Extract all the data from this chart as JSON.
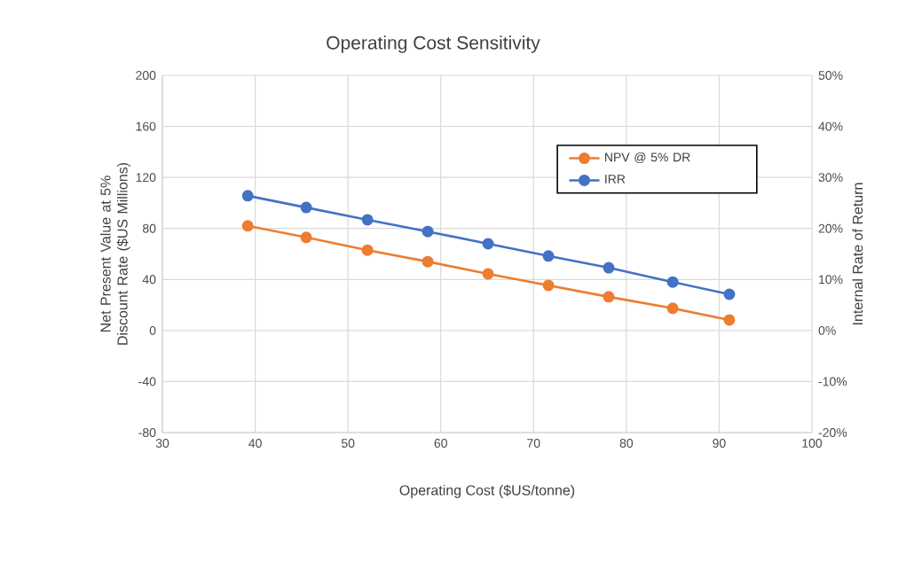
{
  "chart_data": {
    "type": "line",
    "title": "Operating Cost Sensitivity",
    "xlabel": "Operating Cost ($US/tonne)",
    "ylabel": "Net Present Value at 5% Discount Rate ($US Millions)",
    "y2label": "Internal Rate of Return",
    "x": [
      39.2,
      45.5,
      52.1,
      58.6,
      65.1,
      71.6,
      78.1,
      85,
      91.1
    ],
    "series": [
      {
        "name": "NPV @ 5% DR",
        "color": "#ed7d31",
        "values": [
          82,
          73,
          63,
          54,
          44.4,
          35.4,
          26.4,
          17.4,
          8.3
        ]
      },
      {
        "name": "IRR",
        "color": "#4472c4",
        "axis": "y2",
        "values": [
          26.4,
          24.1,
          21.7,
          19.4,
          17,
          14.6,
          12.3,
          9.5,
          7.1
        ]
      }
    ],
    "xlim": [
      30,
      100
    ],
    "xticks": [
      30,
      40,
      50,
      60,
      70,
      80,
      90,
      100
    ],
    "ylim": [
      -80,
      200
    ],
    "yticks": [
      -80,
      -40,
      0,
      40,
      80,
      120,
      160,
      200
    ],
    "y2lim": [
      -20,
      50
    ],
    "y2ticks": [
      {
        "value": -20,
        "label": "-20%"
      },
      {
        "value": -10,
        "label": "-10%"
      },
      {
        "value": 0,
        "label": "0%"
      },
      {
        "value": 10,
        "label": "10%"
      },
      {
        "value": 20,
        "label": "20%"
      },
      {
        "value": 30,
        "label": "30%"
      },
      {
        "value": 40,
        "label": "40%"
      },
      {
        "value": 50,
        "label": "50%"
      }
    ],
    "grid": true,
    "legend": "top right",
    "marker": "circle",
    "line_style": "solid"
  }
}
